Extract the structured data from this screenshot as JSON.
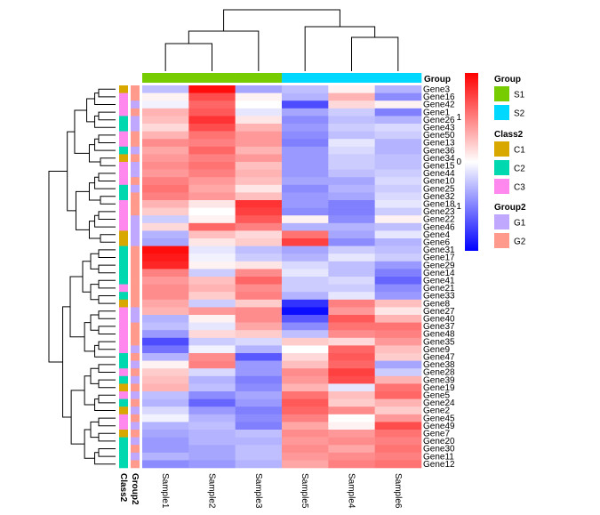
{
  "chart_data": {
    "type": "heatmap",
    "title": "",
    "samples": [
      "Sample1",
      "Sample2",
      "Sample3",
      "Sample5",
      "Sample4",
      "Sample6"
    ],
    "genes": [
      "Gene3",
      "Gene16",
      "Gene42",
      "Gene1",
      "Gene26",
      "Gene43",
      "Gene50",
      "Gene13",
      "Gene36",
      "Gene34",
      "Gene15",
      "Gene44",
      "Gene10",
      "Gene25",
      "Gene32",
      "Gene18",
      "Gene23",
      "Gene22",
      "Gene46",
      "Gene4",
      "Gene6",
      "Gene31",
      "Gene17",
      "Gene29",
      "Gene14",
      "Gene41",
      "Gene21",
      "Gene33",
      "Gene8",
      "Gene27",
      "Gene40",
      "Gene37",
      "Gene48",
      "Gene35",
      "Gene9",
      "Gene47",
      "Gene38",
      "Gene28",
      "Gene39",
      "Gene19",
      "Gene5",
      "Gene24",
      "Gene2",
      "Gene45",
      "Gene49",
      "Gene7",
      "Gene20",
      "Gene30",
      "Gene11",
      "Gene12"
    ],
    "values": [
      [
        -0.5,
        1.9,
        -0.7,
        -0.5,
        0.1,
        -0.6
      ],
      [
        0.1,
        1.4,
        0.1,
        -0.6,
        0.6,
        -0.9
      ],
      [
        -0.1,
        1.2,
        0.0,
        -1.4,
        0.3,
        0.1
      ],
      [
        0.6,
        1.3,
        -0.2,
        -0.7,
        -0.4,
        -1.0
      ],
      [
        0.5,
        1.6,
        0.2,
        -0.9,
        -0.5,
        -0.6
      ],
      [
        0.3,
        1.4,
        0.6,
        -0.8,
        -0.4,
        -0.3
      ],
      [
        0.6,
        1.1,
        0.8,
        -0.9,
        -0.5,
        -0.4
      ],
      [
        0.9,
        1.0,
        0.8,
        -1.0,
        -0.2,
        -0.6
      ],
      [
        0.7,
        1.2,
        0.6,
        -0.8,
        -0.3,
        -0.6
      ],
      [
        0.8,
        1.0,
        0.8,
        -0.8,
        -0.4,
        -0.5
      ],
      [
        0.9,
        1.1,
        0.5,
        -0.8,
        -0.4,
        -0.5
      ],
      [
        0.8,
        1.0,
        0.6,
        -0.8,
        -0.5,
        -0.4
      ],
      [
        1.0,
        0.8,
        0.5,
        -0.7,
        -0.7,
        -0.3
      ],
      [
        1.1,
        0.7,
        0.2,
        -0.9,
        -0.6,
        -0.4
      ],
      [
        1.0,
        0.8,
        0.5,
        -0.8,
        -0.7,
        -0.3
      ],
      [
        0.6,
        0.2,
        1.6,
        -0.8,
        -1.0,
        -0.2
      ],
      [
        0.4,
        0.0,
        1.5,
        -0.9,
        -1.0,
        -0.4
      ],
      [
        -0.4,
        0.1,
        1.3,
        0.1,
        -0.9,
        0.1
      ],
      [
        0.3,
        1.2,
        1.0,
        -0.6,
        -0.6,
        -0.5
      ],
      [
        -0.6,
        0.5,
        0.3,
        1.1,
        -0.7,
        -0.2
      ],
      [
        -0.7,
        0.2,
        0.4,
        1.5,
        -0.9,
        -0.6
      ],
      [
        1.9,
        -0.2,
        -0.5,
        -0.7,
        -0.4,
        -0.5
      ],
      [
        1.8,
        -0.1,
        -0.4,
        -0.6,
        -0.2,
        -0.4
      ],
      [
        1.7,
        0.1,
        0.2,
        -0.3,
        -0.5,
        -0.8
      ],
      [
        1.0,
        -0.4,
        0.9,
        -0.2,
        -0.5,
        -1.0
      ],
      [
        0.8,
        0.5,
        1.2,
        -0.4,
        -0.3,
        -1.2
      ],
      [
        0.9,
        0.6,
        0.9,
        -0.4,
        -0.4,
        -0.9
      ],
      [
        0.9,
        0.4,
        1.0,
        -0.6,
        -0.2,
        -0.8
      ],
      [
        0.7,
        -0.4,
        0.4,
        -1.6,
        1.0,
        0.5
      ],
      [
        0.6,
        0.8,
        0.9,
        -1.9,
        0.8,
        0.2
      ],
      [
        -0.6,
        0.1,
        0.9,
        -1.3,
        1.3,
        0.6
      ],
      [
        -0.5,
        -0.2,
        0.7,
        -0.9,
        1.1,
        1.1
      ],
      [
        -0.8,
        0.3,
        0.4,
        -0.5,
        0.9,
        1.0
      ],
      [
        -1.4,
        -0.4,
        -0.3,
        0.4,
        0.3,
        0.8
      ],
      [
        -1.1,
        -0.1,
        -0.6,
        0.0,
        1.2,
        0.5
      ],
      [
        -0.6,
        0.9,
        -1.3,
        0.3,
        1.3,
        0.4
      ],
      [
        0.1,
        1.0,
        -0.8,
        0.5,
        1.2,
        -0.7
      ],
      [
        0.4,
        -0.3,
        -0.8,
        0.9,
        1.5,
        -0.4
      ],
      [
        0.5,
        -0.6,
        -1.0,
        0.8,
        1.4,
        0.6
      ],
      [
        0.6,
        -0.5,
        -0.9,
        0.6,
        -0.2,
        1.1
      ],
      [
        -0.5,
        -0.9,
        -0.7,
        1.1,
        0.5,
        1.2
      ],
      [
        -0.6,
        -1.2,
        -0.8,
        1.3,
        0.4,
        0.6
      ],
      [
        -0.3,
        -0.8,
        -1.0,
        1.2,
        0.9,
        0.4
      ],
      [
        -0.1,
        -0.6,
        -0.9,
        1.0,
        0.0,
        0.8
      ],
      [
        -0.6,
        -0.5,
        -1.0,
        0.7,
        0.1,
        1.4
      ],
      [
        -0.7,
        -0.6,
        -0.5,
        0.9,
        0.8,
        1.1
      ],
      [
        -0.8,
        -0.6,
        -0.6,
        0.8,
        0.9,
        1.0
      ],
      [
        -0.8,
        -0.7,
        -0.5,
        0.9,
        0.7,
        1.1
      ],
      [
        -0.6,
        -0.7,
        -0.5,
        0.8,
        0.9,
        1.0
      ],
      [
        -0.9,
        -0.8,
        -0.6,
        0.7,
        1.0,
        1.1
      ]
    ],
    "color_scale": {
      "min": -2,
      "mid": 0,
      "max": 2,
      "low": "#0000ff",
      "midColor": "#ffffff",
      "high": "#ff0000"
    },
    "colorbar_ticks": [
      1,
      0,
      -1
    ],
    "col_annotation": {
      "title": "Group",
      "values": [
        "S1",
        "S1",
        "S1",
        "S2",
        "S2",
        "S2"
      ]
    },
    "row_annotations": [
      {
        "title": "Class2",
        "values": [
          "C1",
          "C3",
          "C3",
          "C3",
          "C2",
          "C2",
          "C3",
          "C3",
          "C2",
          "C1",
          "C3",
          "C3",
          "C3",
          "C2",
          "C2",
          "C3",
          "C3",
          "C3",
          "C3",
          "C1",
          "C1",
          "C2",
          "C2",
          "C2",
          "C2",
          "C2",
          "C3",
          "C2",
          "C1",
          "C3",
          "C3",
          "C3",
          "C3",
          "C3",
          "C3",
          "C2",
          "C2",
          "C3",
          "C2",
          "C1",
          "C3",
          "C2",
          "C1",
          "C3",
          "C3",
          "C1",
          "C2",
          "C2",
          "C2",
          "C2"
        ]
      },
      {
        "title": "Group2",
        "values": [
          "G2",
          "G2",
          "G1",
          "G2",
          "G1",
          "G1",
          "G2",
          "G2",
          "G1",
          "G2",
          "G1",
          "G1",
          "G2",
          "G1",
          "G2",
          "G2",
          "G2",
          "G1",
          "G1",
          "G1",
          "G1",
          "G2",
          "G2",
          "G2",
          "G2",
          "G2",
          "G2",
          "G2",
          "G2",
          "G1",
          "G1",
          "G2",
          "G2",
          "G2",
          "G1",
          "G2",
          "G1",
          "G2",
          "G1",
          "G2",
          "G1",
          "G2",
          "G1",
          "G2",
          "G1",
          "G2",
          "G1",
          "G2",
          "G1",
          "G2"
        ]
      }
    ],
    "legend": [
      {
        "title": "Group",
        "items": [
          {
            "label": "S1",
            "color": "#76cc00"
          },
          {
            "label": "S2",
            "color": "#00d8ff"
          }
        ]
      },
      {
        "title": "Class2",
        "items": [
          {
            "label": "C1",
            "color": "#d9a800"
          },
          {
            "label": "C2",
            "color": "#00d8b0"
          },
          {
            "label": "C3",
            "color": "#ff88ee"
          }
        ]
      },
      {
        "title": "Group2",
        "items": [
          {
            "label": "G1",
            "color": "#c0a8ff"
          },
          {
            "label": "G2",
            "color": "#ff9a8c"
          }
        ]
      }
    ]
  }
}
